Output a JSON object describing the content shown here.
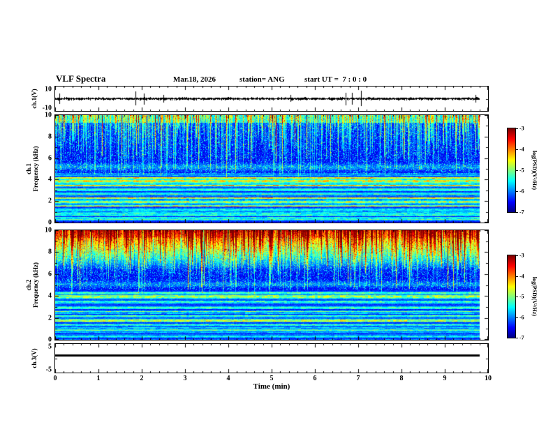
{
  "header": {
    "title": "VLF Spectra",
    "date": "Mar.18, 2026",
    "station_label": "station= ANG",
    "start_ut_label": "start UT =  7 : 0 : 0"
  },
  "xaxis": {
    "label": "Time (min)",
    "tick_labels": [
      "0",
      "1",
      "2",
      "3",
      "4",
      "5",
      "6",
      "7",
      "8",
      "9",
      "10"
    ],
    "range": [
      0,
      10
    ]
  },
  "colorbar": {
    "label": "log(PSD)(V²/Hz)",
    "tick_labels": [
      "-3",
      "-4",
      "-5",
      "-6",
      "-7"
    ],
    "vmax": -3,
    "vmin": -7,
    "colormap": "jet"
  },
  "panels": {
    "ch1_wave": {
      "ylabel": "ch.1(V)",
      "ytop": "10",
      "ybottom": "-10"
    },
    "ch1_spec": {
      "ylabel_line1": "ch.1",
      "ylabel_line2": "Frequency (kHz)",
      "ytick_labels": [
        "10",
        "8",
        "6",
        "4",
        "2",
        "0"
      ]
    },
    "ch2_spec": {
      "ylabel_line1": "ch.2",
      "ylabel_line2": "Frequency (kHz)",
      "ytick_labels": [
        "10",
        "8",
        "6",
        "4",
        "2",
        "0"
      ]
    },
    "ch3_wave": {
      "ylabel": "ch.3(V)",
      "ytop": "5",
      "ybottom": "-5"
    }
  },
  "chart_data": [
    {
      "type": "line",
      "name": "ch1_waveform",
      "panel": "ch.1(V)",
      "xlim": [
        0,
        9.8
      ],
      "ylim": [
        -10,
        10
      ],
      "seed": 5,
      "baseline_v": 0,
      "noise_amp_v": 1.0,
      "burst_amp_v": 5.5,
      "burst_prob": 0.015,
      "color": "#000000",
      "description": "broadband voltage noise trace centered at 0 V, rms about 0.5-1 V, with sporadic impulses reaching +/-6 V over the full 0-9.8 min record"
    },
    {
      "type": "heatmap",
      "name": "ch1_spectrogram",
      "panel": "ch.1 Frequency (kHz)",
      "xlim": [
        0,
        9.8
      ],
      "ylim": [
        0,
        10
      ],
      "zlim": [
        -7,
        -3
      ],
      "zlabel": "log(PSD)(V²/Hz)",
      "colormap": "jet",
      "seed": 11,
      "background": 0.03,
      "upper_base": 0.045,
      "speckle": 0.9,
      "top_edge": 0.16,
      "lower_top_khz": 4.6,
      "lower_base": 0.1,
      "stripe_max": 0.33,
      "streaks": {
        "strength": 0.85,
        "min_top_khz": 4.2
      },
      "hot_top": null,
      "bands": [
        [
          0.35,
          0.12,
          0.28
        ],
        [
          0.8,
          0.1,
          0.3
        ],
        [
          1.25,
          0.1,
          0.32
        ],
        [
          1.6,
          0.1,
          0.36
        ],
        [
          1.95,
          0.14,
          0.5
        ],
        [
          2.3,
          0.1,
          0.4
        ],
        [
          2.7,
          0.08,
          0.28
        ],
        [
          3.1,
          0.09,
          0.3
        ],
        [
          3.5,
          0.1,
          0.42
        ],
        [
          3.9,
          0.18,
          0.58
        ],
        [
          4.2,
          0.09,
          0.4
        ],
        [
          4.55,
          0.08,
          0.22
        ],
        [
          5.2,
          0.3,
          0.18
        ]
      ],
      "description": "VLF spectrogram: dense vertical sferic streaks (green-yellow, log PSD ~ -4.5) above ~4.5 kHz on a dark blue background (~ -6.8); quasi-continuous horizontal emission bands (cyan-green, ~ -5 to -4.5) near 0.8, 1.6, 2.0, 2.3 and 3.5 kHz, with a bright band at ~3.9-4.2 kHz"
    },
    {
      "type": "heatmap",
      "name": "ch2_spectrogram",
      "panel": "ch.2 Frequency (kHz)",
      "xlim": [
        0,
        9.8
      ],
      "ylim": [
        0,
        10
      ],
      "zlim": [
        -7,
        -3
      ],
      "zlabel": "log(PSD)(V²/Hz)",
      "colormap": "jet",
      "seed": 77,
      "background": 0.03,
      "upper_base": 0.045,
      "speckle": 0.9,
      "top_edge": 0.05,
      "lower_top_khz": 4.6,
      "lower_base": 0.1,
      "stripe_max": 0.3,
      "streaks": {
        "strength": 0.95,
        "min_top_khz": 4.2
      },
      "hot_top": {
        "start_khz": 6.4,
        "strength": 0.7,
        "gamma": 0.85
      },
      "bands": [
        [
          0.35,
          0.12,
          0.26
        ],
        [
          0.9,
          0.1,
          0.3
        ],
        [
          1.4,
          0.1,
          0.32
        ],
        [
          1.8,
          0.12,
          0.46
        ],
        [
          2.2,
          0.1,
          0.38
        ],
        [
          2.6,
          0.08,
          0.28
        ],
        [
          3.0,
          0.09,
          0.28
        ],
        [
          3.5,
          0.1,
          0.4
        ],
        [
          3.95,
          0.16,
          0.52
        ],
        [
          4.3,
          0.09,
          0.34
        ],
        [
          5.1,
          0.25,
          0.16
        ]
      ],
      "description": "same structure as ch.1 but the 7-10 kHz region is saturated with intense red/orange sferic activity (log PSD approaching -3)"
    },
    {
      "type": "line",
      "name": "ch3_waveform",
      "panel": "ch.3(V)",
      "xlim": [
        0,
        9.8
      ],
      "ylim": [
        -5,
        5
      ],
      "value_v": 1.0,
      "thickness_px": 3,
      "color": "#000000",
      "description": "flat constant trace at about +1 V for the whole record (no signal variation)"
    }
  ]
}
